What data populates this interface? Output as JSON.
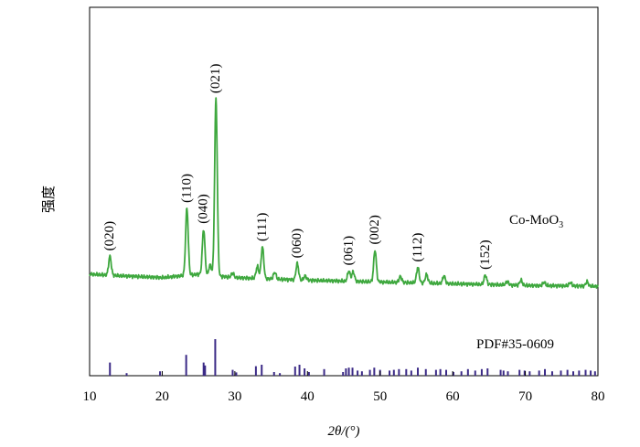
{
  "chart_data": {
    "type": "line",
    "xlabel": "2θ/(°)",
    "ylabel": "强度",
    "xlim": [
      10,
      80
    ],
    "x_ticks": [
      10,
      20,
      30,
      40,
      50,
      60,
      70,
      80
    ],
    "sample_label": "Co-MoO3",
    "reference_label": "PDF#35-0609",
    "colors": {
      "pattern": "#3fa83f",
      "reference": "#3b2a86",
      "axis": "#000000"
    },
    "series": [
      {
        "name": "Co-MoO3",
        "baseline": [
          [
            10,
            0.0
          ],
          [
            20,
            -0.04
          ],
          [
            25,
            0.0
          ],
          [
            30,
            -0.04
          ],
          [
            40,
            -0.07
          ],
          [
            50,
            -0.09
          ],
          [
            60,
            -0.11
          ],
          [
            70,
            -0.13
          ],
          [
            80,
            -0.14
          ]
        ],
        "peaks": [
          {
            "x": 12.8,
            "y": 0.22,
            "label": "(020)"
          },
          {
            "x": 23.4,
            "y": 0.78,
            "label": "(110)"
          },
          {
            "x": 25.7,
            "y": 0.53,
            "label": "(040)"
          },
          {
            "x": 26.6,
            "y": 0.12
          },
          {
            "x": 27.4,
            "y": 2.06,
            "label": "(021)"
          },
          {
            "x": 29.7,
            "y": 0.05
          },
          {
            "x": 33.1,
            "y": 0.14
          },
          {
            "x": 33.8,
            "y": 0.37,
            "label": "(111)"
          },
          {
            "x": 35.5,
            "y": 0.08
          },
          {
            "x": 38.6,
            "y": 0.19,
            "label": "(060)"
          },
          {
            "x": 39.7,
            "y": 0.05
          },
          {
            "x": 45.7,
            "y": 0.12,
            "label": "(061)"
          },
          {
            "x": 46.3,
            "y": 0.11
          },
          {
            "x": 49.3,
            "y": 0.37,
            "label": "(002)"
          },
          {
            "x": 52.8,
            "y": 0.07
          },
          {
            "x": 55.2,
            "y": 0.18,
            "label": "(112)"
          },
          {
            "x": 56.4,
            "y": 0.1
          },
          {
            "x": 58.8,
            "y": 0.09
          },
          {
            "x": 64.5,
            "y": 0.11,
            "label": "(152)"
          },
          {
            "x": 67.5,
            "y": 0.04
          },
          {
            "x": 69.4,
            "y": 0.06
          },
          {
            "x": 72.6,
            "y": 0.04
          },
          {
            "x": 76.2,
            "y": 0.04
          },
          {
            "x": 78.5,
            "y": 0.05
          }
        ]
      }
    ],
    "reference_lines": [
      {
        "x": 12.8,
        "i": 0.36
      },
      {
        "x": 15.1,
        "i": 0.07
      },
      {
        "x": 19.7,
        "i": 0.12
      },
      {
        "x": 23.3,
        "i": 0.57
      },
      {
        "x": 25.7,
        "i": 0.36
      },
      {
        "x": 25.9,
        "i": 0.28
      },
      {
        "x": 27.3,
        "i": 1.0
      },
      {
        "x": 29.7,
        "i": 0.16
      },
      {
        "x": 30.2,
        "i": 0.09
      },
      {
        "x": 32.9,
        "i": 0.26
      },
      {
        "x": 33.7,
        "i": 0.3
      },
      {
        "x": 35.4,
        "i": 0.1
      },
      {
        "x": 36.2,
        "i": 0.07
      },
      {
        "x": 38.3,
        "i": 0.25
      },
      {
        "x": 38.9,
        "i": 0.3
      },
      {
        "x": 39.6,
        "i": 0.2
      },
      {
        "x": 40.2,
        "i": 0.1
      },
      {
        "x": 42.3,
        "i": 0.18
      },
      {
        "x": 44.9,
        "i": 0.1
      },
      {
        "x": 45.3,
        "i": 0.2
      },
      {
        "x": 45.7,
        "i": 0.22
      },
      {
        "x": 46.2,
        "i": 0.22
      },
      {
        "x": 46.9,
        "i": 0.14
      },
      {
        "x": 47.5,
        "i": 0.12
      },
      {
        "x": 48.6,
        "i": 0.16
      },
      {
        "x": 49.2,
        "i": 0.22
      },
      {
        "x": 50.0,
        "i": 0.16
      },
      {
        "x": 51.3,
        "i": 0.14
      },
      {
        "x": 51.9,
        "i": 0.16
      },
      {
        "x": 52.6,
        "i": 0.18
      },
      {
        "x": 53.6,
        "i": 0.18
      },
      {
        "x": 54.3,
        "i": 0.14
      },
      {
        "x": 55.2,
        "i": 0.22
      },
      {
        "x": 56.3,
        "i": 0.18
      },
      {
        "x": 57.7,
        "i": 0.16
      },
      {
        "x": 58.3,
        "i": 0.18
      },
      {
        "x": 59.1,
        "i": 0.16
      },
      {
        "x": 60.1,
        "i": 0.1
      },
      {
        "x": 61.2,
        "i": 0.12
      },
      {
        "x": 62.1,
        "i": 0.18
      },
      {
        "x": 63.1,
        "i": 0.14
      },
      {
        "x": 64.0,
        "i": 0.18
      },
      {
        "x": 64.8,
        "i": 0.2
      },
      {
        "x": 66.6,
        "i": 0.16
      },
      {
        "x": 67.0,
        "i": 0.14
      },
      {
        "x": 67.6,
        "i": 0.12
      },
      {
        "x": 69.2,
        "i": 0.16
      },
      {
        "x": 69.9,
        "i": 0.14
      },
      {
        "x": 70.6,
        "i": 0.12
      },
      {
        "x": 71.9,
        "i": 0.14
      },
      {
        "x": 72.7,
        "i": 0.18
      },
      {
        "x": 73.7,
        "i": 0.12
      },
      {
        "x": 74.9,
        "i": 0.14
      },
      {
        "x": 75.8,
        "i": 0.16
      },
      {
        "x": 76.6,
        "i": 0.12
      },
      {
        "x": 77.4,
        "i": 0.14
      },
      {
        "x": 78.3,
        "i": 0.16
      },
      {
        "x": 79.0,
        "i": 0.14
      },
      {
        "x": 79.6,
        "i": 0.12
      }
    ]
  }
}
